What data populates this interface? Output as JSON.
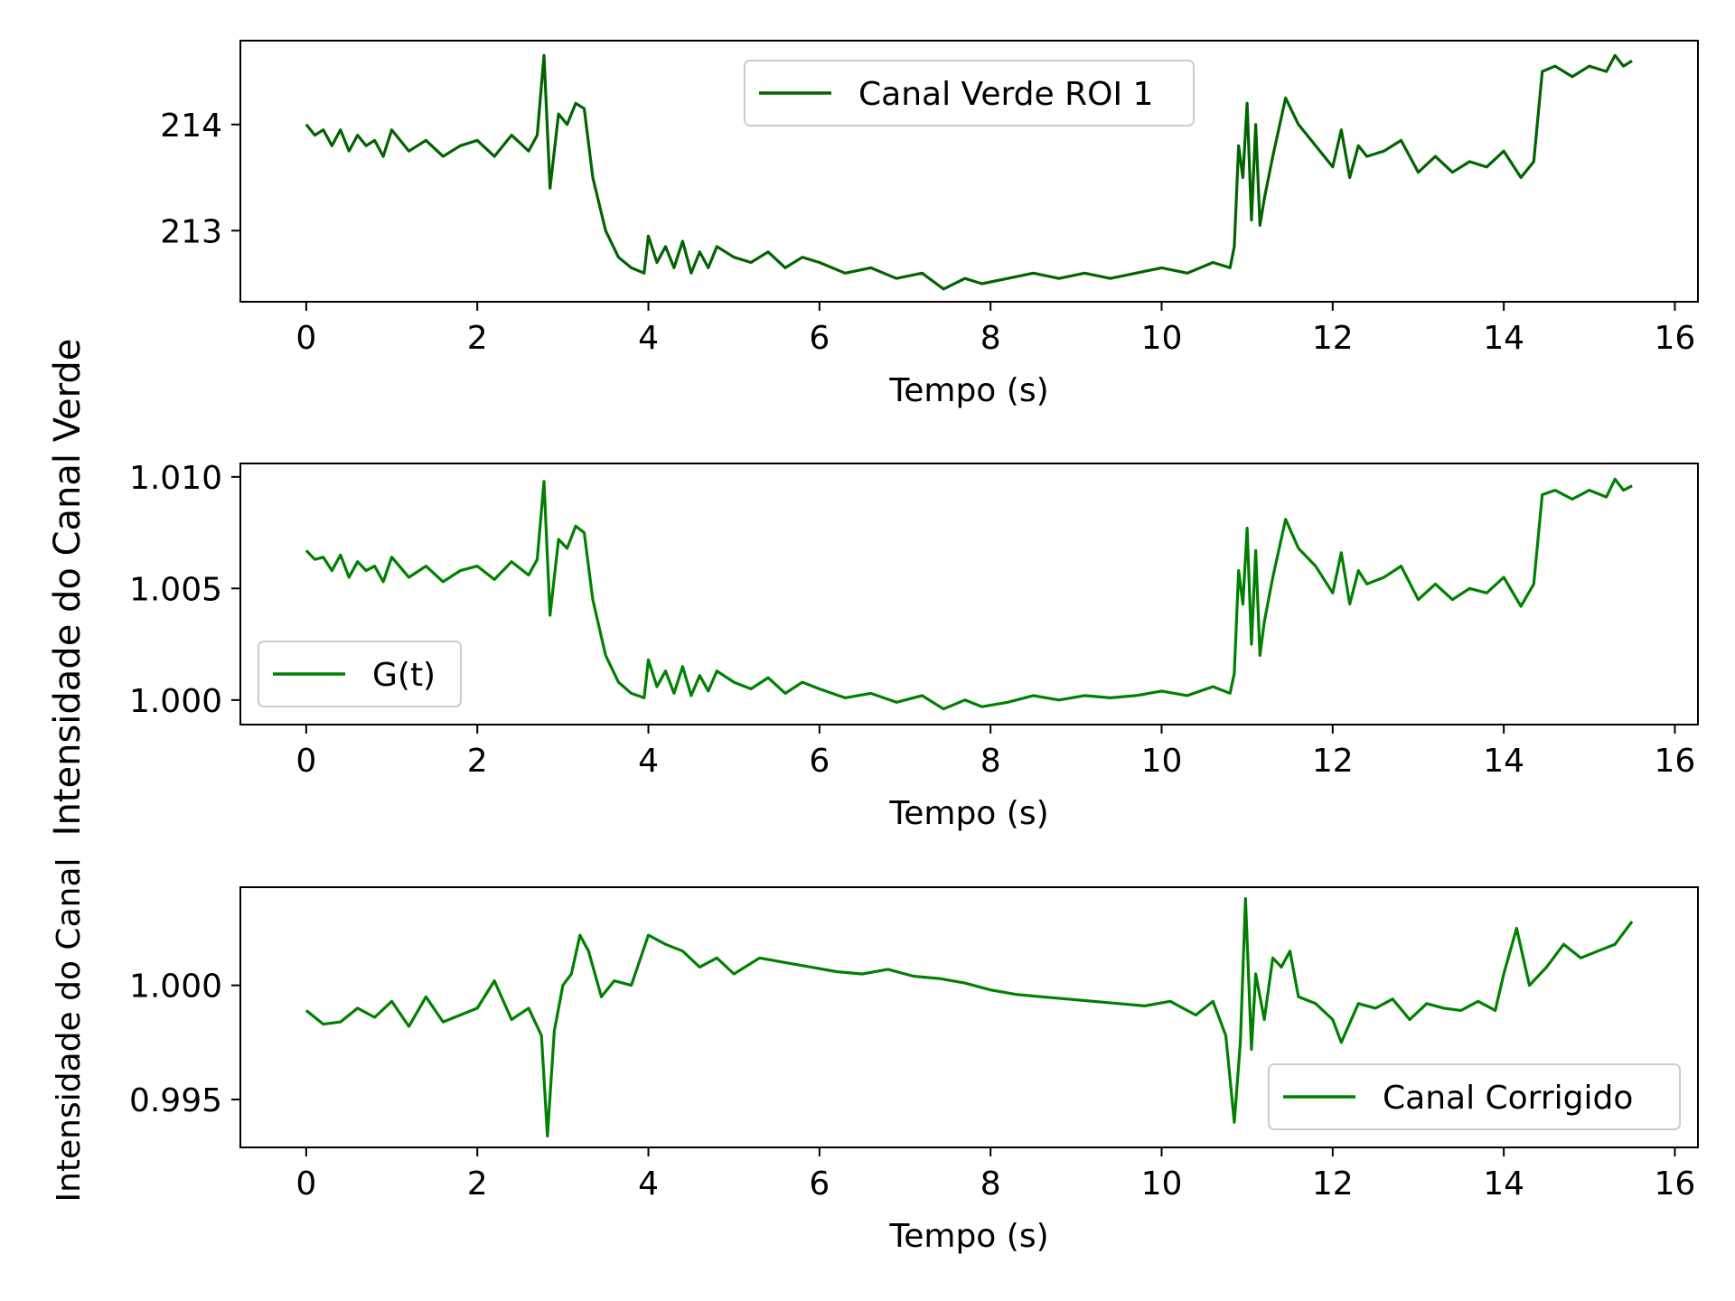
{
  "figure": {
    "supylabel": "Intensidade do Canal Verde",
    "overlay_ylabel": "Intensidade do Canal"
  },
  "colors": {
    "series": [
      "#006400",
      "#008000",
      "#008000"
    ],
    "axes": "#000000",
    "legend_border": "#cccccc"
  },
  "chart_data": [
    {
      "type": "line",
      "xlabel": "Tempo (s)",
      "ylabel": "",
      "xlim": [
        -0.77,
        16.27
      ],
      "ylim": [
        212.33,
        214.79
      ],
      "xticks": [
        0,
        2,
        4,
        6,
        8,
        10,
        12,
        14,
        16
      ],
      "yticks": [
        213,
        214
      ],
      "ytick_labels": [
        "213",
        "214"
      ],
      "legend": "top-center",
      "grid": false,
      "series": [
        {
          "name": "Canal Verde ROI 1",
          "color": "#006400",
          "x": [
            0,
            0.1,
            0.2,
            0.3,
            0.4,
            0.5,
            0.6,
            0.7,
            0.8,
            0.9,
            1.0,
            1.2,
            1.4,
            1.6,
            1.8,
            2.0,
            2.2,
            2.4,
            2.6,
            2.7,
            2.78,
            2.85,
            2.95,
            3.05,
            3.15,
            3.25,
            3.35,
            3.5,
            3.65,
            3.8,
            3.95,
            4.0,
            4.1,
            4.2,
            4.3,
            4.4,
            4.5,
            4.6,
            4.7,
            4.8,
            5.0,
            5.2,
            5.4,
            5.6,
            5.8,
            6.0,
            6.3,
            6.6,
            6.9,
            7.2,
            7.45,
            7.7,
            7.9,
            8.2,
            8.5,
            8.8,
            9.1,
            9.4,
            9.7,
            10.0,
            10.3,
            10.6,
            10.8,
            10.85,
            10.9,
            10.95,
            11.0,
            11.05,
            11.1,
            11.15,
            11.2,
            11.3,
            11.45,
            11.6,
            11.8,
            12.0,
            12.1,
            12.2,
            12.3,
            12.4,
            12.6,
            12.8,
            13.0,
            13.2,
            13.4,
            13.6,
            13.8,
            14.0,
            14.2,
            14.35,
            14.45,
            14.6,
            14.8,
            15.0,
            15.2,
            15.3,
            15.4,
            15.5
          ],
          "y": [
            214.0,
            213.9,
            213.95,
            213.8,
            213.95,
            213.75,
            213.9,
            213.8,
            213.85,
            213.7,
            213.95,
            213.75,
            213.85,
            213.7,
            213.8,
            213.85,
            213.7,
            213.9,
            213.75,
            213.9,
            214.65,
            213.4,
            214.1,
            214.0,
            214.2,
            214.15,
            213.5,
            213.0,
            212.75,
            212.65,
            212.6,
            212.95,
            212.7,
            212.85,
            212.65,
            212.9,
            212.6,
            212.8,
            212.65,
            212.85,
            212.75,
            212.7,
            212.8,
            212.65,
            212.75,
            212.7,
            212.6,
            212.65,
            212.55,
            212.6,
            212.45,
            212.55,
            212.5,
            212.55,
            212.6,
            212.55,
            212.6,
            212.55,
            212.6,
            212.65,
            212.6,
            212.7,
            212.65,
            212.85,
            213.8,
            213.5,
            214.2,
            213.1,
            214.0,
            213.05,
            213.3,
            213.7,
            214.25,
            214.0,
            213.8,
            213.6,
            213.95,
            213.5,
            213.8,
            213.7,
            213.75,
            213.85,
            213.55,
            213.7,
            213.55,
            213.65,
            213.6,
            213.75,
            213.5,
            213.65,
            214.5,
            214.55,
            214.45,
            214.55,
            214.5,
            214.65,
            214.55,
            214.6
          ]
        }
      ]
    },
    {
      "type": "line",
      "xlabel": "Tempo (s)",
      "ylabel": "",
      "xlim": [
        -0.77,
        16.27
      ],
      "ylim": [
        0.9989,
        1.0106
      ],
      "xticks": [
        0,
        2,
        4,
        6,
        8,
        10,
        12,
        14,
        16
      ],
      "yticks": [
        1.0,
        1.005,
        1.01
      ],
      "ytick_labels": [
        "1.000",
        "1.005",
        "1.010"
      ],
      "legend": "lower-left",
      "grid": false,
      "series": [
        {
          "name": "G(t)",
          "color": "#008000",
          "x": [
            0,
            0.1,
            0.2,
            0.3,
            0.4,
            0.5,
            0.6,
            0.7,
            0.8,
            0.9,
            1.0,
            1.2,
            1.4,
            1.6,
            1.8,
            2.0,
            2.2,
            2.4,
            2.6,
            2.7,
            2.78,
            2.85,
            2.95,
            3.05,
            3.15,
            3.25,
            3.35,
            3.5,
            3.65,
            3.8,
            3.95,
            4.0,
            4.1,
            4.2,
            4.3,
            4.4,
            4.5,
            4.6,
            4.7,
            4.8,
            5.0,
            5.2,
            5.4,
            5.6,
            5.8,
            6.0,
            6.3,
            6.6,
            6.9,
            7.2,
            7.45,
            7.7,
            7.9,
            8.2,
            8.5,
            8.8,
            9.1,
            9.4,
            9.7,
            10.0,
            10.3,
            10.6,
            10.8,
            10.85,
            10.9,
            10.95,
            11.0,
            11.05,
            11.1,
            11.15,
            11.2,
            11.3,
            11.45,
            11.6,
            11.8,
            12.0,
            12.1,
            12.2,
            12.3,
            12.4,
            12.6,
            12.8,
            13.0,
            13.2,
            13.4,
            13.6,
            13.8,
            14.0,
            14.2,
            14.35,
            14.45,
            14.6,
            14.8,
            15.0,
            15.2,
            15.3,
            15.4,
            15.5
          ],
          "y": [
            1.0067,
            1.0063,
            1.0064,
            1.0058,
            1.0065,
            1.0055,
            1.0062,
            1.0058,
            1.006,
            1.0053,
            1.0064,
            1.0055,
            1.006,
            1.0053,
            1.0058,
            1.006,
            1.0054,
            1.0062,
            1.0056,
            1.0063,
            1.0098,
            1.0038,
            1.0072,
            1.0068,
            1.0078,
            1.0075,
            1.0045,
            1.002,
            1.0008,
            1.0003,
            1.0001,
            1.0018,
            1.0006,
            1.0013,
            1.0003,
            1.0015,
            1.0002,
            1.0011,
            1.0004,
            1.0013,
            1.0008,
            1.0005,
            1.001,
            1.0003,
            1.0008,
            1.0005,
            1.0001,
            1.0003,
            0.9999,
            1.0002,
            0.9996,
            1.0,
            0.9997,
            0.9999,
            1.0002,
            1.0,
            1.0002,
            1.0001,
            1.0002,
            1.0004,
            1.0002,
            1.0006,
            1.0003,
            1.0012,
            1.0058,
            1.0043,
            1.0077,
            1.0025,
            1.0067,
            1.002,
            1.0035,
            1.0055,
            1.0081,
            1.0068,
            1.006,
            1.0048,
            1.0066,
            1.0043,
            1.0058,
            1.0052,
            1.0055,
            1.006,
            1.0045,
            1.0052,
            1.0045,
            1.005,
            1.0048,
            1.0055,
            1.0042,
            1.0052,
            1.0092,
            1.0094,
            1.009,
            1.0094,
            1.0091,
            1.0099,
            1.0094,
            1.0096
          ]
        }
      ]
    },
    {
      "type": "line",
      "xlabel": "Tempo (s)",
      "ylabel": "",
      "xlim": [
        -0.77,
        16.27
      ],
      "ylim": [
        0.9929,
        1.0043
      ],
      "xticks": [
        0,
        2,
        4,
        6,
        8,
        10,
        12,
        14,
        16
      ],
      "yticks": [
        0.995,
        1.0
      ],
      "ytick_labels": [
        "0.995",
        "1.000"
      ],
      "legend": "lower-right",
      "grid": false,
      "series": [
        {
          "name": "Canal Corrigido",
          "color": "#008000",
          "x": [
            0,
            0.2,
            0.4,
            0.6,
            0.8,
            1.0,
            1.2,
            1.4,
            1.6,
            1.8,
            2.0,
            2.2,
            2.4,
            2.6,
            2.75,
            2.82,
            2.9,
            3.0,
            3.1,
            3.2,
            3.3,
            3.45,
            3.6,
            3.8,
            4.0,
            4.2,
            4.4,
            4.6,
            4.8,
            5.0,
            5.3,
            5.6,
            5.9,
            6.2,
            6.5,
            6.8,
            7.1,
            7.4,
            7.7,
            8.0,
            8.3,
            8.6,
            8.9,
            9.2,
            9.5,
            9.8,
            10.1,
            10.4,
            10.6,
            10.75,
            10.85,
            10.92,
            10.98,
            11.05,
            11.1,
            11.2,
            11.3,
            11.4,
            11.5,
            11.6,
            11.8,
            12.0,
            12.1,
            12.3,
            12.5,
            12.7,
            12.9,
            13.1,
            13.3,
            13.5,
            13.7,
            13.9,
            14.0,
            14.15,
            14.3,
            14.5,
            14.7,
            14.9,
            15.1,
            15.3,
            15.5
          ],
          "y": [
            0.9989,
            0.9983,
            0.9984,
            0.999,
            0.9986,
            0.9993,
            0.9982,
            0.9995,
            0.9984,
            0.9987,
            0.999,
            1.0002,
            0.9985,
            0.999,
            0.9978,
            0.9934,
            0.998,
            1.0,
            1.0005,
            1.0022,
            1.0015,
            0.9995,
            1.0002,
            1.0,
            1.0022,
            1.0018,
            1.0015,
            1.0008,
            1.0012,
            1.0005,
            1.0012,
            1.001,
            1.0008,
            1.0006,
            1.0005,
            1.0007,
            1.0004,
            1.0003,
            1.0001,
            0.9998,
            0.9996,
            0.9995,
            0.9994,
            0.9993,
            0.9992,
            0.9991,
            0.9993,
            0.9987,
            0.9993,
            0.9978,
            0.994,
            0.9975,
            1.0038,
            0.9972,
            1.0005,
            0.9985,
            1.0012,
            1.0008,
            1.0015,
            0.9995,
            0.9992,
            0.9985,
            0.9975,
            0.9992,
            0.999,
            0.9994,
            0.9985,
            0.9992,
            0.999,
            0.9989,
            0.9993,
            0.9989,
            1.0005,
            1.0025,
            1.0,
            1.0008,
            1.0018,
            1.0012,
            1.0015,
            1.0018,
            1.0028
          ]
        }
      ]
    }
  ]
}
